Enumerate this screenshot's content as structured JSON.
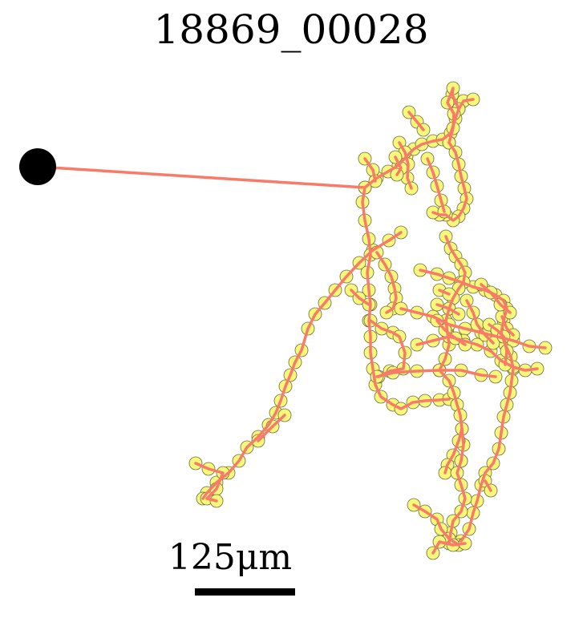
{
  "title": "18869_00028",
  "scale_bar": {
    "label": "125μm"
  },
  "colors": {
    "track_line": "#f87b6a",
    "node_fill": "#f7f77a",
    "node_stroke": "#6b6b40",
    "start_marker": "#000000",
    "scale_bar": "#000000"
  }
}
